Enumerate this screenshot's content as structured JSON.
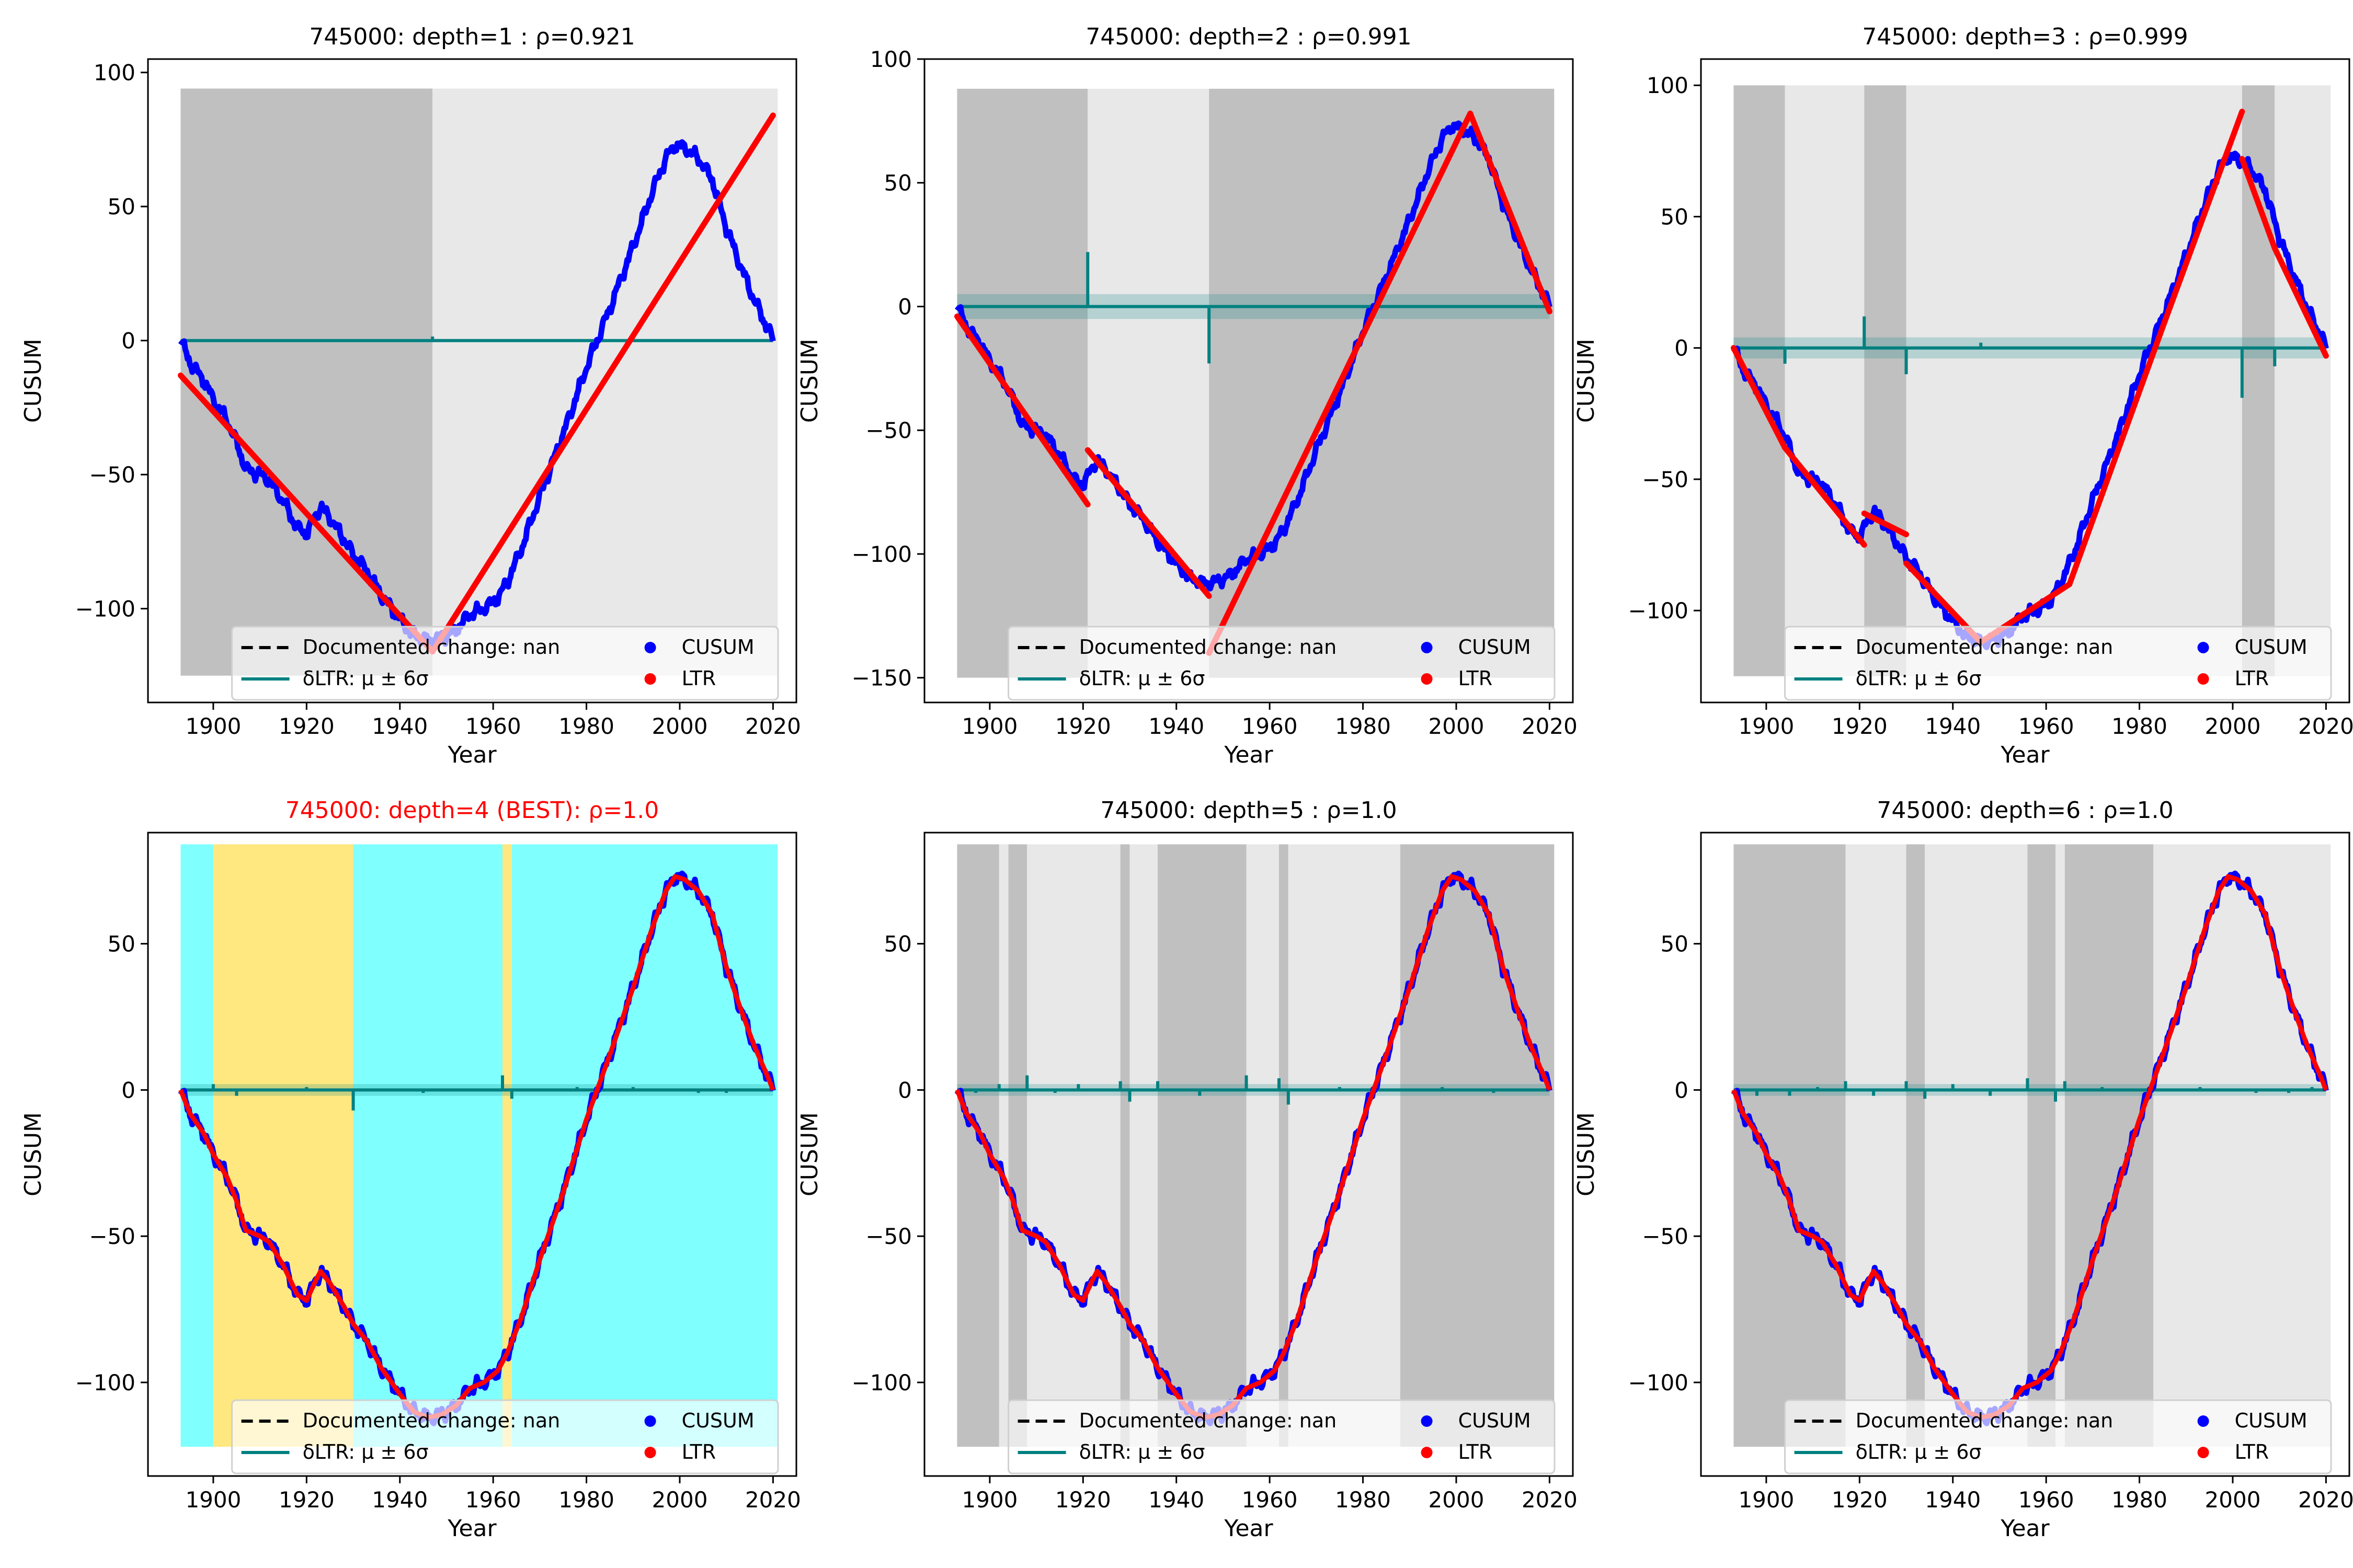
{
  "figure": {
    "id_label": "745000"
  },
  "legend": {
    "documented": "Documented change: nan",
    "dltr": "δLTR: μ ± 6σ",
    "cusum": "CUSUM",
    "ltr": "LTR"
  },
  "colors": {
    "cusum": "#0000ff",
    "ltr": "#ff0000",
    "dltr": "#008080",
    "shade_dark": "#c0c0c0",
    "shade_light": "#e8e8e8",
    "best_a": "#80ffff",
    "best_b": "#ffe880",
    "best_title": "#ff0000"
  },
  "chart_data": [
    {
      "type": "line",
      "title": "745000: depth=1 : ρ=0.921",
      "xlabel": "Year",
      "ylabel": "CUSUM",
      "xlim": [
        1886,
        2025
      ],
      "ylim": [
        -135,
        105
      ],
      "xticks": [
        1900,
        1920,
        1940,
        1960,
        1980,
        2000,
        2020
      ],
      "yticks": [
        -100,
        -50,
        0,
        50,
        100
      ],
      "ytick_labels": [
        "−100",
        "−50",
        "0",
        "50",
        "100"
      ],
      "best": false,
      "regions": [
        [
          1893,
          1947,
          "dark"
        ],
        [
          1947,
          2021,
          "light"
        ]
      ],
      "shade_y": [
        -125,
        94
      ],
      "ltr": [
        [
          [
            1893,
            -13
          ],
          [
            1947,
            -116
          ]
        ],
        [
          [
            1947,
            -116
          ],
          [
            2020,
            84
          ]
        ]
      ],
      "dltr": {
        "band": 0.5,
        "spikes": [
          [
            1947,
            1.5
          ]
        ]
      }
    },
    {
      "type": "line",
      "title": "745000: depth=2 : ρ=0.991",
      "xlabel": "Year",
      "ylabel": "CUSUM",
      "xlim": [
        1886,
        2025
      ],
      "ylim": [
        -160,
        100
      ],
      "xticks": [
        1900,
        1920,
        1940,
        1960,
        1980,
        2000,
        2020
      ],
      "yticks": [
        -150,
        -100,
        -50,
        0,
        50,
        100
      ],
      "ytick_labels": [
        "−150",
        "−100",
        "−50",
        "0",
        "50",
        "100"
      ],
      "best": false,
      "regions": [
        [
          1893,
          1921,
          "dark"
        ],
        [
          1921,
          1947,
          "light"
        ],
        [
          1947,
          2021,
          "dark"
        ]
      ],
      "shade_y": [
        -150,
        88
      ],
      "ltr": [
        [
          [
            1893,
            -4
          ],
          [
            1921,
            -80
          ]
        ],
        [
          [
            1921,
            -58
          ],
          [
            1947,
            -117
          ]
        ],
        [
          [
            1947,
            -140
          ],
          [
            2003,
            78
          ]
        ],
        [
          [
            2003,
            78
          ],
          [
            2020,
            -2
          ]
        ]
      ],
      "dltr": {
        "band": 5,
        "spikes": [
          [
            1921,
            22
          ],
          [
            1947,
            -23
          ]
        ]
      }
    },
    {
      "type": "line",
      "title": "745000: depth=3 : ρ=0.999",
      "xlabel": "Year",
      "ylabel": "CUSUM",
      "xlim": [
        1886,
        2025
      ],
      "ylim": [
        -135,
        110
      ],
      "xticks": [
        1900,
        1920,
        1940,
        1960,
        1980,
        2000,
        2020
      ],
      "yticks": [
        -100,
        -50,
        0,
        50,
        100
      ],
      "ytick_labels": [
        "−100",
        "−50",
        "0",
        "50",
        "100"
      ],
      "best": false,
      "regions": [
        [
          1893,
          1904,
          "dark"
        ],
        [
          1904,
          1921,
          "light"
        ],
        [
          1921,
          1930,
          "dark"
        ],
        [
          1930,
          2002,
          "light"
        ],
        [
          2002,
          2009,
          "dark"
        ],
        [
          2009,
          2021,
          "light"
        ]
      ],
      "shade_y": [
        -125,
        100
      ],
      "ltr": [
        [
          [
            1893,
            0
          ],
          [
            1904,
            -38
          ]
        ],
        [
          [
            1904,
            -38
          ],
          [
            1921,
            -75
          ]
        ],
        [
          [
            1921,
            -63
          ],
          [
            1930,
            -71
          ]
        ],
        [
          [
            1930,
            -82
          ],
          [
            1946,
            -112
          ]
        ],
        [
          [
            1946,
            -112
          ],
          [
            1965,
            -90
          ]
        ],
        [
          [
            1965,
            -90
          ],
          [
            1985,
            8
          ]
        ],
        [
          [
            1985,
            8
          ],
          [
            2002,
            90
          ]
        ],
        [
          [
            2002,
            72
          ],
          [
            2009,
            38
          ]
        ],
        [
          [
            2009,
            38
          ],
          [
            2020,
            -3
          ]
        ]
      ],
      "dltr": {
        "band": 4,
        "spikes": [
          [
            1921,
            12
          ],
          [
            1930,
            -10
          ],
          [
            1904,
            -6
          ],
          [
            2002,
            -19
          ],
          [
            2009,
            -7
          ],
          [
            1946,
            2
          ]
        ]
      }
    },
    {
      "type": "line",
      "title": "745000: depth=4 (BEST): ρ=1.0",
      "xlabel": "Year",
      "ylabel": "CUSUM",
      "xlim": [
        1886,
        2025
      ],
      "ylim": [
        -132,
        88
      ],
      "xticks": [
        1900,
        1920,
        1940,
        1960,
        1980,
        2000,
        2020
      ],
      "yticks": [
        -100,
        -50,
        0,
        50
      ],
      "ytick_labels": [
        "−100",
        "−50",
        "0",
        "50"
      ],
      "best": true,
      "regions": [
        [
          1893,
          1900,
          "a"
        ],
        [
          1900,
          1930,
          "b"
        ],
        [
          1930,
          1962,
          "a"
        ],
        [
          1962,
          1964,
          "b"
        ],
        [
          1964,
          2021,
          "a"
        ]
      ],
      "shade_y": [
        -122,
        84
      ],
      "ltr": "follow",
      "dltr": {
        "band": 2,
        "spikes": [
          [
            1900,
            2
          ],
          [
            1930,
            -7
          ],
          [
            1962,
            5
          ],
          [
            1964,
            -3
          ],
          [
            1905,
            -2
          ],
          [
            1920,
            1
          ],
          [
            1945,
            -1
          ],
          [
            1978,
            1
          ],
          [
            1990,
            1
          ],
          [
            2004,
            -1
          ],
          [
            2010,
            -1
          ]
        ]
      }
    },
    {
      "type": "line",
      "title": "745000: depth=5 : ρ=1.0",
      "xlabel": "Year",
      "ylabel": "CUSUM",
      "xlim": [
        1886,
        2025
      ],
      "ylim": [
        -132,
        88
      ],
      "xticks": [
        1900,
        1920,
        1940,
        1960,
        1980,
        2000,
        2020
      ],
      "yticks": [
        -100,
        -50,
        0,
        50
      ],
      "ytick_labels": [
        "−100",
        "−50",
        "0",
        "50"
      ],
      "best": false,
      "regions": [
        [
          1893,
          1902,
          "dark"
        ],
        [
          1902,
          1904,
          "light"
        ],
        [
          1904,
          1908,
          "dark"
        ],
        [
          1908,
          1928,
          "light"
        ],
        [
          1928,
          1930,
          "dark"
        ],
        [
          1930,
          1936,
          "light"
        ],
        [
          1936,
          1955,
          "dark"
        ],
        [
          1955,
          1962,
          "light"
        ],
        [
          1962,
          1964,
          "dark"
        ],
        [
          1964,
          1988,
          "light"
        ],
        [
          1988,
          2021,
          "dark"
        ]
      ],
      "shade_y": [
        -122,
        84
      ],
      "ltr": "follow",
      "dltr": {
        "band": 2,
        "spikes": [
          [
            1902,
            2
          ],
          [
            1908,
            5
          ],
          [
            1928,
            3
          ],
          [
            1930,
            -4
          ],
          [
            1936,
            3
          ],
          [
            1955,
            5
          ],
          [
            1962,
            4
          ],
          [
            1964,
            -5
          ],
          [
            1919,
            2
          ],
          [
            1945,
            -2
          ],
          [
            1975,
            1
          ],
          [
            1997,
            1
          ],
          [
            2008,
            -1
          ],
          [
            1897,
            -1
          ],
          [
            1914,
            -1
          ]
        ]
      }
    },
    {
      "type": "line",
      "title": "745000: depth=6 : ρ=1.0",
      "xlabel": "Year",
      "ylabel": "CUSUM",
      "xlim": [
        1886,
        2025
      ],
      "ylim": [
        -132,
        88
      ],
      "xticks": [
        1900,
        1920,
        1940,
        1960,
        1980,
        2000,
        2020
      ],
      "yticks": [
        -100,
        -50,
        0,
        50
      ],
      "ytick_labels": [
        "−100",
        "−50",
        "0",
        "50"
      ],
      "best": false,
      "regions": [
        [
          1893,
          1917,
          "dark"
        ],
        [
          1917,
          1930,
          "light"
        ],
        [
          1930,
          1934,
          "dark"
        ],
        [
          1934,
          1956,
          "light"
        ],
        [
          1956,
          1962,
          "dark"
        ],
        [
          1962,
          1964,
          "light"
        ],
        [
          1964,
          1983,
          "dark"
        ],
        [
          1983,
          2021,
          "light"
        ]
      ],
      "shade_y": [
        -122,
        84
      ],
      "ltr": "follow",
      "dltr": {
        "band": 2,
        "spikes": [
          [
            1917,
            3
          ],
          [
            1930,
            3
          ],
          [
            1934,
            -3
          ],
          [
            1956,
            4
          ],
          [
            1962,
            -4
          ],
          [
            1964,
            3
          ],
          [
            1983,
            2
          ],
          [
            1898,
            -2
          ],
          [
            1905,
            -2
          ],
          [
            1911,
            1
          ],
          [
            1923,
            -2
          ],
          [
            1940,
            2
          ],
          [
            1948,
            -2
          ],
          [
            1972,
            1
          ],
          [
            1993,
            1
          ],
          [
            2005,
            -1
          ],
          [
            2012,
            -1
          ],
          [
            2017,
            1
          ]
        ]
      }
    }
  ]
}
